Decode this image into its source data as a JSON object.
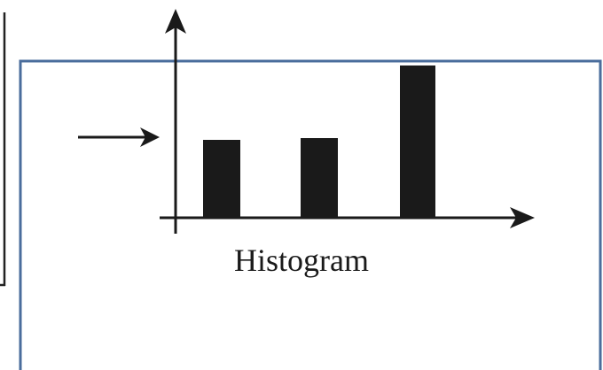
{
  "diagram": {
    "label": "Histogram"
  }
}
